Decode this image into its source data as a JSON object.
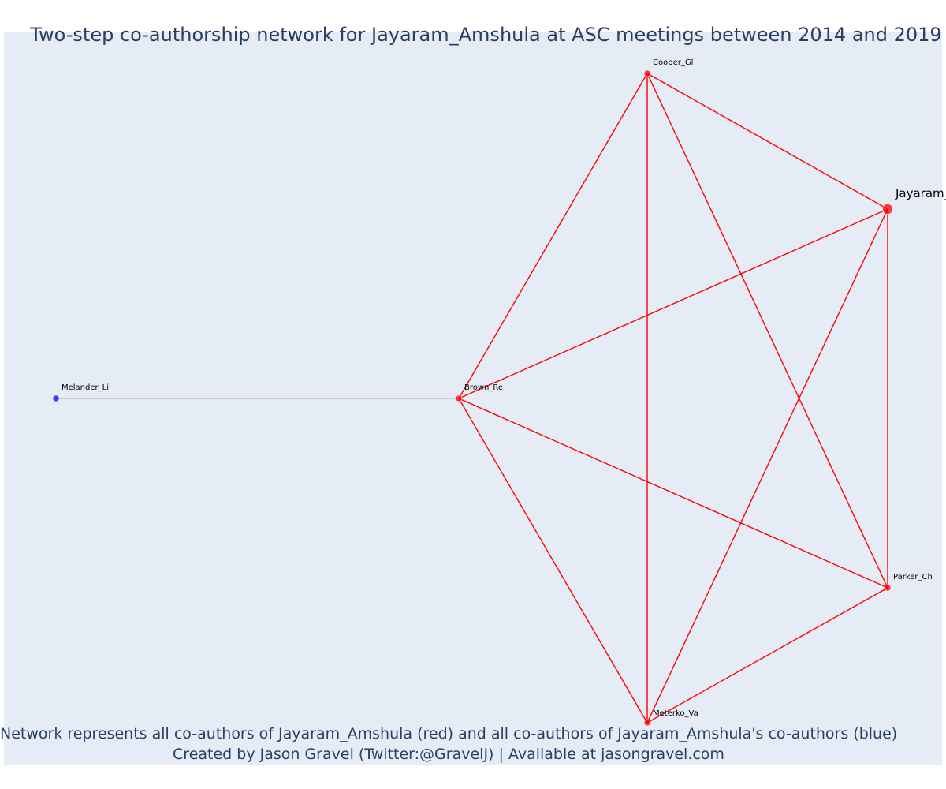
{
  "title": "Two-step co-authorship network for Jayaram_Amshula at ASC meetings between 2014 and 2019",
  "caption_line1": "Network represents all co-authors of Jayaram_Amshula (red) and all co-authors of Jayaram_Amshula's co-authors (blue)",
  "caption_line2": "Created by Jason Gravel (Twitter:@GravelJ) | Available at jasongravel.com",
  "colors": {
    "plot_background": "#e5ecf6",
    "direct_coauthor": "#ff0000",
    "second_step_coauthor": "#0000ff",
    "direct_edge": "#ff0000",
    "second_step_edge": "#c8cbd6",
    "title_text": "#2a3f5f"
  },
  "nodes": [
    {
      "id": "Jayaram_Amshula",
      "label": "Jayaram_",
      "group": "ego"
    },
    {
      "id": "Cooper_Gl",
      "label": "Cooper_Gl",
      "group": "coauthor"
    },
    {
      "id": "Brown_Re",
      "label": "Brown_Re",
      "group": "coauthor"
    },
    {
      "id": "Parker_Ch",
      "label": "Parker_Ch",
      "group": "coauthor"
    },
    {
      "id": "Meterko_Va",
      "label": "Meterko_Va",
      "group": "coauthor"
    },
    {
      "id": "Melander_Li",
      "label": "Melander_Li",
      "group": "second_step"
    }
  ],
  "edges": [
    {
      "source": "Cooper_Gl",
      "target": "Jayaram_Amshula",
      "type": "direct"
    },
    {
      "source": "Cooper_Gl",
      "target": "Brown_Re",
      "type": "direct"
    },
    {
      "source": "Cooper_Gl",
      "target": "Meterko_Va",
      "type": "direct"
    },
    {
      "source": "Cooper_Gl",
      "target": "Parker_Ch",
      "type": "direct"
    },
    {
      "source": "Jayaram_Amshula",
      "target": "Brown_Re",
      "type": "direct"
    },
    {
      "source": "Jayaram_Amshula",
      "target": "Meterko_Va",
      "type": "direct"
    },
    {
      "source": "Jayaram_Amshula",
      "target": "Parker_Ch",
      "type": "direct"
    },
    {
      "source": "Brown_Re",
      "target": "Parker_Ch",
      "type": "direct"
    },
    {
      "source": "Brown_Re",
      "target": "Meterko_Va",
      "type": "direct"
    },
    {
      "source": "Parker_Ch",
      "target": "Meterko_Va",
      "type": "direct"
    },
    {
      "source": "Melander_Li",
      "target": "Brown_Re",
      "type": "second_step"
    }
  ]
}
